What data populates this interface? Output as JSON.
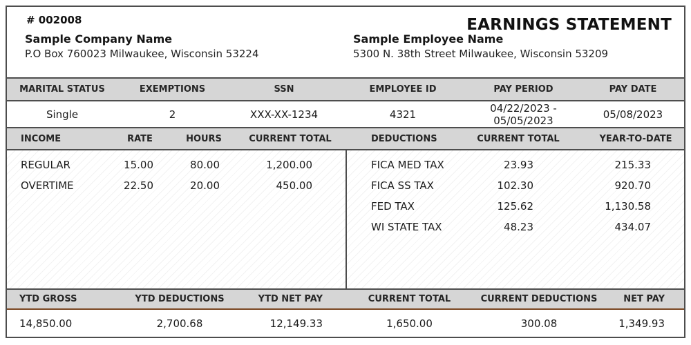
{
  "header": {
    "statement_number": "# 002008",
    "title": "EARNINGS STATEMENT",
    "company": {
      "name": "Sample Company Name",
      "address": "P.O Box 760023 Milwaukee, Wisconsin 53224"
    },
    "employee": {
      "name": "Sample Employee Name",
      "address": "5300 N. 38th Street Milwaukee, Wisconsin 53209"
    }
  },
  "info_table": {
    "headers": [
      "MARITAL STATUS",
      "EXEMPTIONS",
      "SSN",
      "EMPLOYEE ID",
      "PAY PERIOD",
      "PAY DATE"
    ],
    "values": [
      "Single",
      "2",
      "XXX-XX-1234",
      "4321",
      "04/22/2023 - 05/05/2023",
      "05/08/2023"
    ]
  },
  "earnings_table": {
    "income": {
      "headers": [
        "INCOME",
        "RATE",
        "HOURS",
        "CURRENT TOTAL"
      ],
      "rows": [
        {
          "label": "REGULAR",
          "rate": "15.00",
          "hours": "80.00",
          "current_total": "1,200.00"
        },
        {
          "label": "OVERTIME",
          "rate": "22.50",
          "hours": "20.00",
          "current_total": "450.00"
        }
      ]
    },
    "deductions": {
      "headers": [
        "DEDUCTIONS",
        "CURRENT TOTAL",
        "YEAR-TO-DATE"
      ],
      "rows": [
        {
          "label": "FICA MED TAX",
          "current_total": "23.93",
          "year_to_date": "215.33"
        },
        {
          "label": "FICA SS TAX",
          "current_total": "102.30",
          "year_to_date": "920.70"
        },
        {
          "label": "FED TAX",
          "current_total": "125.62",
          "year_to_date": "1,130.58"
        },
        {
          "label": "WI STATE TAX",
          "current_total": "48.23",
          "year_to_date": "434.07"
        }
      ]
    }
  },
  "summary_table": {
    "headers": [
      "YTD GROSS",
      "YTD DEDUCTIONS",
      "YTD NET PAY",
      "CURRENT TOTAL",
      "CURRENT DEDUCTIONS",
      "NET PAY"
    ],
    "values": [
      "14,850.00",
      "2,700.68",
      "12,149.33",
      "1,650.00",
      "300.08",
      "1,349.93"
    ]
  },
  "colors": {
    "header_bar": "#d6d6d6",
    "border": "#4d4d4d",
    "accent_line": "#7a4722"
  }
}
